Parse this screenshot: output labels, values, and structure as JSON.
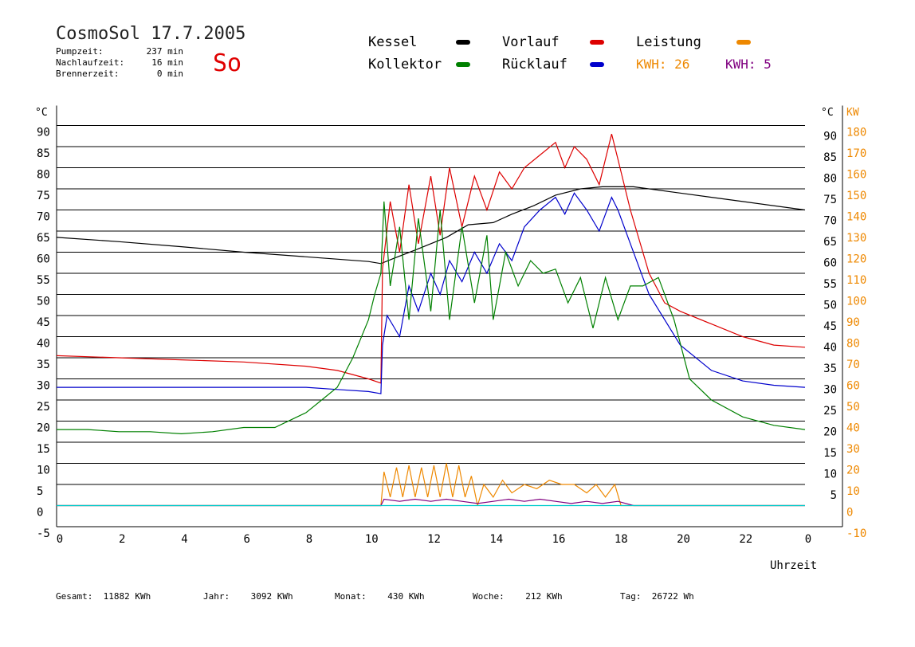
{
  "header": {
    "title": "CosmoSol 17.7.2005",
    "day": "So",
    "stats": [
      {
        "label": "Pumpzeit:",
        "value": "237 min"
      },
      {
        "label": "Nachlaufzeit:",
        "value": "16 min"
      },
      {
        "label": "Brennerzeit:",
        "value": "0 min"
      }
    ]
  },
  "legend": {
    "items": [
      {
        "label": "Kessel",
        "color": "#000000"
      },
      {
        "label": "Vorlauf",
        "color": "#dd0000"
      },
      {
        "label": "Leistung",
        "color": "#ee8800"
      },
      {
        "label": "Kollektor",
        "color": "#008000"
      },
      {
        "label": "Rücklauf",
        "color": "#0000cc"
      }
    ],
    "kwh": [
      {
        "label": "KWH:",
        "value": "26",
        "color": "#ee8800"
      },
      {
        "label": "KWH:",
        "value": "5",
        "color": "#800080"
      }
    ]
  },
  "footer": [
    {
      "label": "Gesamt:",
      "value": "11882 KWh"
    },
    {
      "label": "Jahr:",
      "value": "3092 KWh"
    },
    {
      "label": "Monat:",
      "value": "430 KWh"
    },
    {
      "label": "Woche:",
      "value": "212 KWh"
    },
    {
      "label": "Tag:",
      "value": "26722 Wh"
    }
  ],
  "chart_data": {
    "type": "line",
    "xlabel": "Uhrzeit",
    "ylabel_left": "°C",
    "ylabel_right": "KW",
    "xlim": [
      0,
      24
    ],
    "ylim_left": [
      -5,
      90
    ],
    "ylim_right": [
      -10,
      180
    ],
    "x_ticks": [
      "0",
      "2",
      "4",
      "6",
      "8",
      "10",
      "12",
      "14",
      "16",
      "18",
      "20",
      "22",
      "0"
    ],
    "y_ticks_left": [
      "90",
      "85",
      "80",
      "75",
      "70",
      "65",
      "60",
      "55",
      "50",
      "45",
      "40",
      "35",
      "30",
      "25",
      "20",
      "15",
      "10",
      "5",
      "0",
      "-5"
    ],
    "y_ticks_right_main": [
      "90",
      "85",
      "80",
      "75",
      "70",
      "65",
      "60",
      "55",
      "50",
      "45",
      "40",
      "35",
      "30",
      "25",
      "20",
      "15",
      "10",
      "5"
    ],
    "y_ticks_right_power": [
      "180",
      "170",
      "160",
      "150",
      "140",
      "130",
      "120",
      "110",
      "100",
      "90",
      "80",
      "70",
      "60",
      "50",
      "40",
      "30",
      "20",
      "10",
      "0",
      "-10"
    ],
    "grid": "horizontal",
    "series": [
      {
        "name": "Kessel",
        "color": "#000000",
        "x": [
          0,
          2,
          4,
          6,
          8,
          10,
          10.4,
          10.8,
          11.5,
          12.5,
          13.2,
          14,
          14.6,
          15.3,
          16,
          16.8,
          17.5,
          18.5,
          20,
          22,
          24
        ],
        "y": [
          63.5,
          62.5,
          61.3,
          60.0,
          58.9,
          57.8,
          57.3,
          58.5,
          60.5,
          63.5,
          66.5,
          67.0,
          69.0,
          71.0,
          73.5,
          75.0,
          75.5,
          75.5,
          74.0,
          72.0,
          70.0
        ]
      },
      {
        "name": "Vorlauf",
        "color": "#dd0000",
        "x": [
          0,
          2,
          4,
          6,
          8,
          9,
          10,
          10.4,
          10.45,
          10.7,
          11,
          11.3,
          11.6,
          12,
          12.3,
          12.6,
          13,
          13.4,
          13.8,
          14.2,
          14.6,
          15,
          15.5,
          16,
          16.3,
          16.6,
          17,
          17.4,
          17.8,
          18,
          18.4,
          19,
          19.5,
          20,
          21,
          22,
          23,
          24
        ],
        "y": [
          35.5,
          35.0,
          34.5,
          34.0,
          33.0,
          32.0,
          30.0,
          29.0,
          56,
          72,
          60,
          76,
          62,
          78,
          64,
          80,
          66,
          78,
          70,
          79,
          75,
          80,
          83,
          86,
          80,
          85,
          82,
          76,
          88,
          82,
          70,
          55,
          48,
          46,
          43,
          40,
          38,
          37.5
        ]
      },
      {
        "name": "Rücklauf",
        "color": "#0000cc",
        "x": [
          0,
          2,
          4,
          6,
          8,
          9,
          10,
          10.4,
          10.45,
          10.6,
          11,
          11.3,
          11.6,
          12,
          12.3,
          12.6,
          13,
          13.4,
          13.8,
          14.2,
          14.6,
          15,
          15.5,
          16,
          16.3,
          16.6,
          17,
          17.4,
          17.8,
          18,
          18.4,
          19,
          20,
          21,
          22,
          23,
          24
        ],
        "y": [
          28.0,
          28.0,
          28.0,
          28.0,
          28.0,
          27.5,
          27.0,
          26.5,
          38,
          45,
          40,
          52,
          46,
          55,
          50,
          58,
          53,
          60,
          55,
          62,
          58,
          66,
          70,
          73,
          69,
          74,
          70,
          65,
          73,
          70,
          62,
          50,
          38,
          32,
          29.5,
          28.5,
          28.0
        ]
      },
      {
        "name": "Kollektor",
        "color": "#008000",
        "x": [
          0,
          1,
          2,
          3,
          4,
          5,
          6,
          7,
          8,
          8.5,
          9,
          9.5,
          10,
          10.2,
          10.4,
          10.5,
          10.7,
          11,
          11.3,
          11.6,
          12,
          12.3,
          12.6,
          13,
          13.4,
          13.8,
          14,
          14.4,
          14.8,
          15.2,
          15.6,
          16,
          16.4,
          16.8,
          17.2,
          17.6,
          18,
          18.4,
          18.8,
          19.3,
          19.8,
          20.3,
          21,
          22,
          23,
          24
        ],
        "y": [
          18.0,
          18.0,
          17.5,
          17.5,
          17.0,
          17.5,
          18.5,
          18.5,
          22.0,
          25.0,
          28.0,
          35.0,
          44.0,
          50.0,
          55.0,
          72.0,
          52,
          66,
          44,
          68,
          46,
          70,
          44,
          66,
          48,
          64,
          44,
          60,
          52,
          58,
          55,
          56,
          48,
          54,
          42,
          54,
          44,
          52,
          52,
          54,
          44,
          30,
          25,
          21,
          19,
          18
        ]
      },
      {
        "name": "Leistung",
        "color": "#ee8800",
        "axis": "right",
        "x": [
          0,
          10.3,
          10.4,
          10.5,
          10.7,
          10.9,
          11.1,
          11.3,
          11.5,
          11.7,
          11.9,
          12.1,
          12.3,
          12.5,
          12.7,
          12.9,
          13.1,
          13.3,
          13.5,
          13.7,
          14,
          14.3,
          14.6,
          15,
          15.4,
          15.8,
          16.2,
          16.6,
          17,
          17.3,
          17.6,
          17.9,
          18.1,
          18.3,
          18.5,
          24
        ],
        "y": [
          0,
          0,
          0,
          16,
          4,
          18,
          4,
          19,
          4,
          18,
          4,
          19,
          4,
          20,
          4,
          19,
          4,
          14,
          0,
          10,
          4,
          12,
          6,
          10,
          8,
          12,
          10,
          10,
          6,
          10,
          4,
          10,
          0,
          0,
          0,
          0
        ]
      },
      {
        "name": "",
        "color": "#800080",
        "axis": "right",
        "x": [
          0,
          10.4,
          10.5,
          11,
          11.5,
          12,
          12.5,
          13,
          13.5,
          14,
          14.5,
          15,
          15.5,
          16,
          16.5,
          17,
          17.5,
          18,
          18.5,
          24
        ],
        "y": [
          0,
          0,
          3,
          2,
          3,
          2,
          3,
          2,
          1,
          2,
          3,
          2,
          3,
          2,
          1,
          2,
          1,
          2,
          0,
          0
        ]
      },
      {
        "name": "",
        "color": "#00cccc",
        "axis": "right",
        "x": [
          0,
          24
        ],
        "y": [
          0,
          0
        ]
      }
    ]
  }
}
